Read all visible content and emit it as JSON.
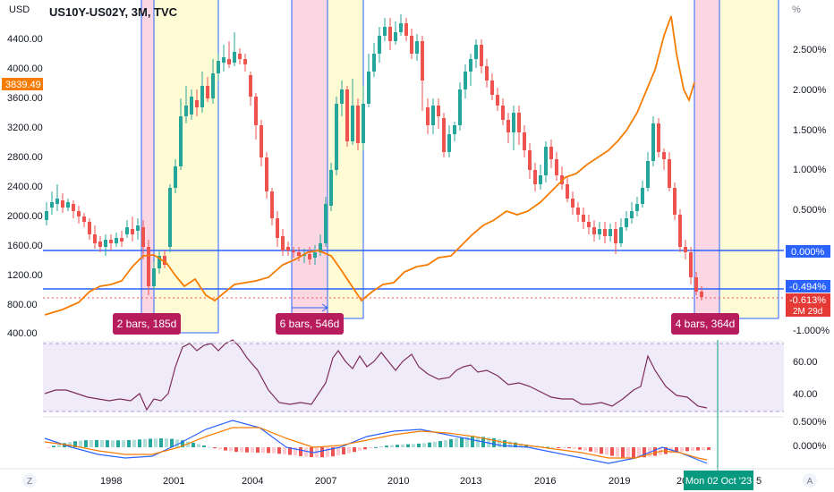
{
  "header": {
    "symbol_text": "US10Y-US02Y, 3M, TVC",
    "left_unit": "USD",
    "right_unit": "%"
  },
  "left_axis_ticks": [
    "4400.00",
    "4000.00",
    "3600.00",
    "3200.00",
    "2800.00",
    "2400.00",
    "2000.00",
    "1600.00",
    "1200.00",
    "800.00",
    "400.00"
  ],
  "right_axis_ticks": [
    "2.500%",
    "2.000%",
    "1.500%",
    "1.000%",
    "0.500%",
    "-1.000%"
  ],
  "rsi_ticks": [
    "60.00",
    "40.00"
  ],
  "macd_ticks": [
    "0.500%",
    "0.000%"
  ],
  "x_ticks": [
    "1998",
    "2001",
    "2004",
    "2007",
    "2010",
    "2013",
    "2016",
    "2019",
    "2022",
    "5"
  ],
  "badges": {
    "price": "3839.49",
    "zero_line": "0.000%",
    "mid_line": "-0.494%",
    "last_value": "-0.613%",
    "countdown": "2M 29d"
  },
  "range_labels": [
    "2 bars, 185d",
    "6 bars, 546d",
    "4 bars, 364d"
  ],
  "crosshair_date": "Mon 02 Oct '23",
  "bottom_buttons": {
    "left": "Z",
    "right": "A"
  },
  "colors": {
    "up": "#26a69a",
    "down": "#ef5350",
    "orange_line": "#f57c00",
    "blue": "#2962ff",
    "rsi": "#7e57c2",
    "pink_zone": "rgba(233,30,99,0.18)",
    "yellow_zone": "rgba(255,235,59,0.22)",
    "label_bg": "#b71c5d",
    "teal_line": "#089981"
  },
  "chart_data": {
    "type": "candlestick",
    "title": "US10Y-US02Y, 3M, TVC",
    "xlabel": "",
    "ylabel_left": "USD",
    "ylabel_right": "%",
    "ylim_left": [
      400,
      4600
    ],
    "ylim_right": [
      -1.0,
      3.0
    ],
    "series": [
      {
        "name": "US10Y-US02Y",
        "type": "line",
        "axis": "right",
        "x": [
          1996,
          1997,
          1998,
          1999,
          2000,
          2000.5,
          2001,
          2002,
          2003,
          2004,
          2005,
          2006,
          2007,
          2007.5,
          2008,
          2009,
          2010,
          2011,
          2012,
          2013,
          2014,
          2015,
          2016,
          2017,
          2018,
          2019,
          2020,
          2021,
          2022,
          2022.5,
          2023,
          2023.5
        ],
        "y": [
          -0.85,
          -0.7,
          -0.45,
          -0.2,
          -0.05,
          0.3,
          0.7,
          0.45,
          -0.15,
          0.0,
          -0.1,
          0.5,
          0.6,
          0.9,
          0.45,
          0.0,
          0.1,
          0.55,
          0.25,
          0.6,
          0.8,
          1.2,
          1.5,
          1.5,
          1.8,
          2.6,
          2.8,
          1.6,
          2.2,
          1.6,
          2.8,
          2.1
        ]
      },
      {
        "name": "RSI",
        "type": "line",
        "panel": "rsi",
        "x": [
          1996,
          1998,
          2000,
          2001.5,
          2003,
          2004.5,
          2006,
          2007.5,
          2009,
          2010.5,
          2012,
          2013.5,
          2015,
          2016.5,
          2018,
          2019.5,
          2021,
          2022,
          2023
        ],
        "y": [
          40,
          37,
          32,
          68,
          72,
          60,
          28,
          30,
          68,
          60,
          55,
          58,
          50,
          44,
          40,
          32,
          52,
          36,
          32
        ]
      }
    ]
  }
}
